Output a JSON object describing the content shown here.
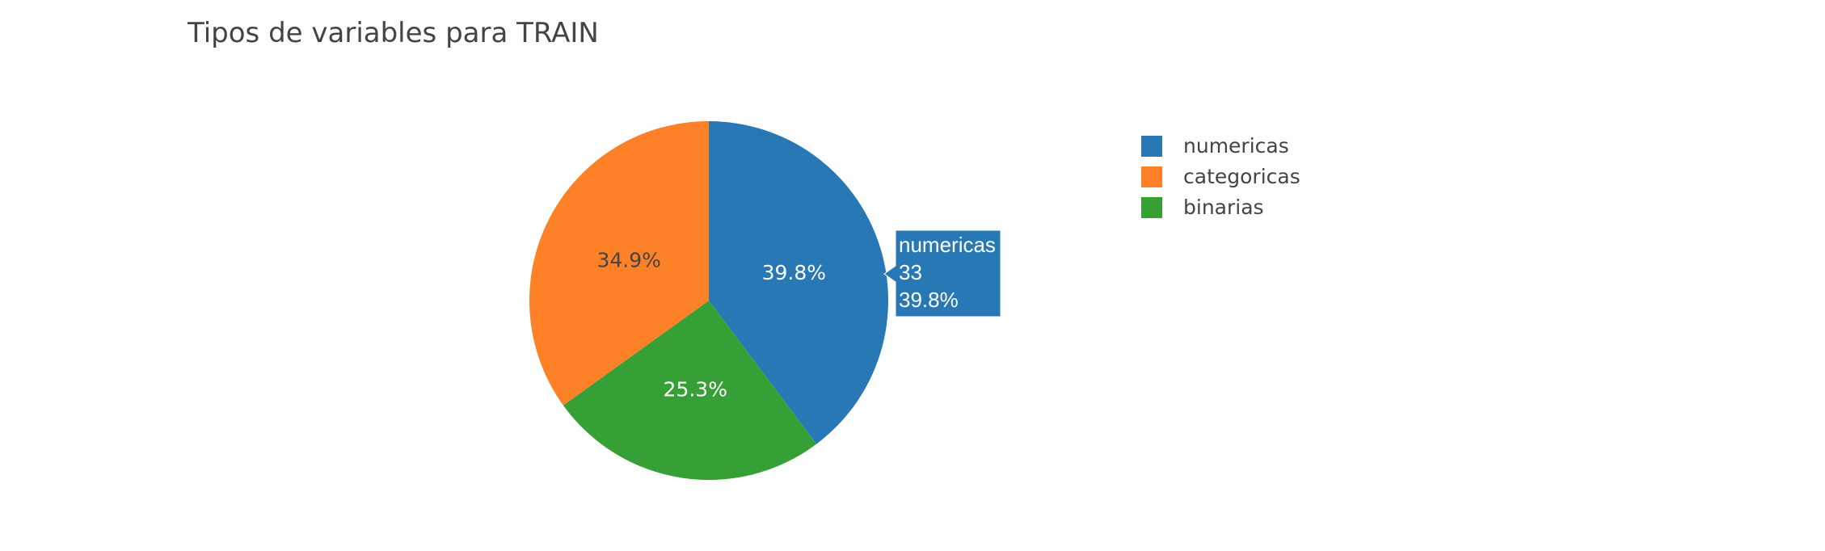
{
  "chart_data": {
    "type": "pie",
    "title": "Tipos de variables para TRAIN",
    "slices": [
      {
        "label": "numericas",
        "value": 33,
        "percent_label": "39.8%",
        "color": "#2778b4",
        "text_color": "#ffffff"
      },
      {
        "label": "binarias",
        "value": 21,
        "percent_label": "25.3%",
        "color": "#36a036",
        "text_color": "#ffffff"
      },
      {
        "label": "categoricas",
        "value": 29,
        "percent_label": "34.9%",
        "color": "#fe8128",
        "text_color": "#444444"
      }
    ],
    "legend": {
      "placement": "right",
      "entries": [
        "numericas",
        "categoricas",
        "binarias"
      ]
    },
    "hover": {
      "series": "numericas",
      "lines": [
        "numericas",
        "33",
        "39.8%"
      ],
      "color": "#2778b4"
    }
  }
}
